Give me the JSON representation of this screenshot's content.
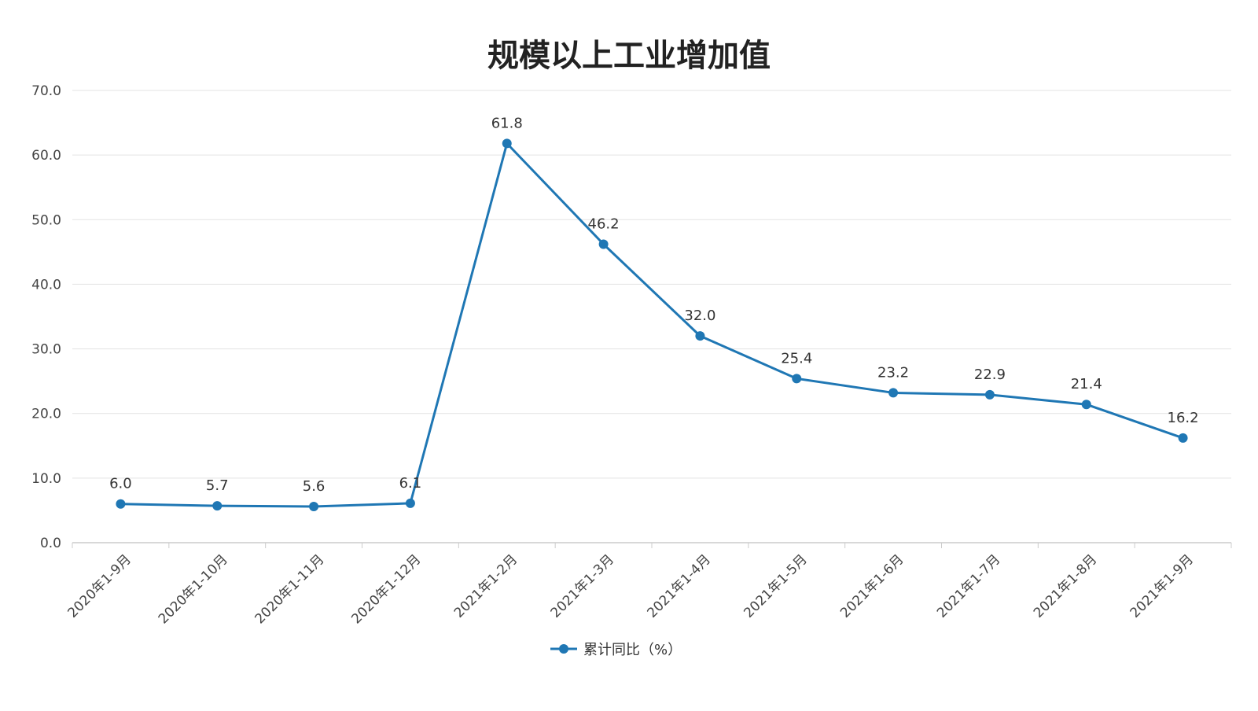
{
  "chart_data": {
    "type": "line",
    "title": "规模以上工业增加值",
    "categories": [
      "2020年1-9月",
      "2020年1-10月",
      "2020年1-11月",
      "2020年1-12月",
      "2021年1-2月",
      "2021年1-3月",
      "2021年1-4月",
      "2021年1-5月",
      "2021年1-6月",
      "2021年1-7月",
      "2021年1-8月",
      "2021年1-9月"
    ],
    "series": [
      {
        "name": "累计同比（%）",
        "values": [
          6.0,
          5.7,
          5.6,
          6.1,
          61.8,
          46.2,
          32.0,
          25.4,
          23.2,
          22.9,
          21.4,
          16.2
        ],
        "labels": [
          "6.0",
          "5.7",
          "5.6",
          "6.1",
          "61.8",
          "46.2",
          "32.0",
          "25.4",
          "23.2",
          "22.9",
          "21.4",
          "16.2"
        ],
        "color": "#1f77b4"
      }
    ],
    "y_ticks": [
      "0.0",
      "10.0",
      "20.0",
      "30.0",
      "40.0",
      "50.0",
      "60.0",
      "70.0"
    ],
    "ylim": [
      0,
      70
    ],
    "xlabel": "",
    "ylabel": "",
    "grid": true,
    "legend_position": "bottom",
    "colors": {
      "line": "#1f77b4",
      "grid": "#e3e3e3",
      "axis": "#cccccc"
    }
  }
}
